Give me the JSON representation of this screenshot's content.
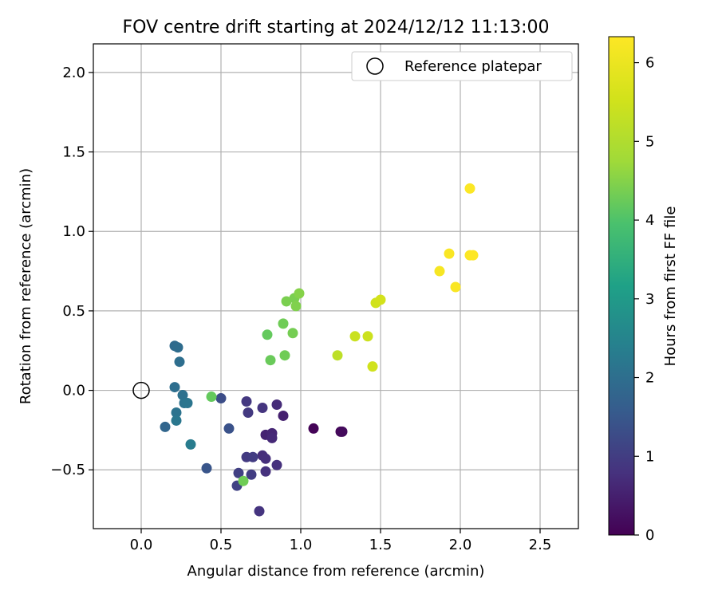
{
  "chart_data": {
    "type": "scatter",
    "title": "FOV centre drift starting at 2024/12/12 11:13:00",
    "xlabel": "Angular distance from reference (arcmin)",
    "ylabel": "Rotation from reference (arcmin)",
    "xlim": [
      -0.3,
      2.74
    ],
    "ylim": [
      -0.87,
      2.18
    ],
    "xticks": [
      0.0,
      0.5,
      1.0,
      1.5,
      2.0,
      2.5
    ],
    "xtick_labels": [
      "0.0",
      "0.5",
      "1.0",
      "1.5",
      "2.0",
      "2.5"
    ],
    "yticks": [
      -0.5,
      0.0,
      0.5,
      1.0,
      1.5,
      2.0
    ],
    "ytick_labels": [
      "−0.5",
      "0.0",
      "0.5",
      "1.0",
      "1.5",
      "2.0"
    ],
    "grid": true,
    "legend": {
      "position": "upper right",
      "label": "Reference platepar"
    },
    "reference_point": {
      "x": 0.0,
      "y": 0.0
    },
    "colorbar": {
      "label": "Hours from first FF file",
      "colormap": "viridis",
      "range": [
        0,
        6.33
      ],
      "ticks": [
        0,
        1,
        2,
        3,
        4,
        5,
        6
      ],
      "tick_labels": [
        "0",
        "1",
        "2",
        "3",
        "4",
        "5",
        "6"
      ]
    },
    "points": [
      {
        "x": 1.08,
        "y": -0.24,
        "c": 0.05
      },
      {
        "x": 1.25,
        "y": -0.26,
        "c": 0.1
      },
      {
        "x": 1.26,
        "y": -0.26,
        "c": 0.15
      },
      {
        "x": 0.89,
        "y": -0.16,
        "c": 0.5
      },
      {
        "x": 0.78,
        "y": -0.28,
        "c": 0.55
      },
      {
        "x": 0.82,
        "y": -0.27,
        "c": 0.6
      },
      {
        "x": 0.82,
        "y": -0.3,
        "c": 0.65
      },
      {
        "x": 0.85,
        "y": -0.09,
        "c": 0.7
      },
      {
        "x": 0.76,
        "y": -0.41,
        "c": 0.72
      },
      {
        "x": 0.78,
        "y": -0.43,
        "c": 0.75
      },
      {
        "x": 0.85,
        "y": -0.47,
        "c": 0.78
      },
      {
        "x": 0.78,
        "y": -0.51,
        "c": 0.8
      },
      {
        "x": 0.74,
        "y": -0.76,
        "c": 0.82
      },
      {
        "x": 0.76,
        "y": -0.11,
        "c": 0.85
      },
      {
        "x": 0.66,
        "y": -0.07,
        "c": 0.9
      },
      {
        "x": 0.67,
        "y": -0.14,
        "c": 0.92
      },
      {
        "x": 0.66,
        "y": -0.42,
        "c": 0.95
      },
      {
        "x": 0.7,
        "y": -0.42,
        "c": 0.98
      },
      {
        "x": 0.69,
        "y": -0.53,
        "c": 1.0
      },
      {
        "x": 0.61,
        "y": -0.52,
        "c": 1.05
      },
      {
        "x": 0.6,
        "y": -0.6,
        "c": 1.1
      },
      {
        "x": 0.5,
        "y": -0.05,
        "c": 1.3
      },
      {
        "x": 0.55,
        "y": -0.24,
        "c": 1.4
      },
      {
        "x": 0.41,
        "y": -0.49,
        "c": 1.45
      },
      {
        "x": 0.15,
        "y": -0.23,
        "c": 1.8
      },
      {
        "x": 0.21,
        "y": 0.28,
        "c": 1.9
      },
      {
        "x": 0.23,
        "y": 0.27,
        "c": 1.95
      },
      {
        "x": 0.24,
        "y": 0.18,
        "c": 2.0
      },
      {
        "x": 0.21,
        "y": 0.02,
        "c": 2.0
      },
      {
        "x": 0.26,
        "y": -0.03,
        "c": 2.05
      },
      {
        "x": 0.27,
        "y": -0.08,
        "c": 2.1
      },
      {
        "x": 0.29,
        "y": -0.08,
        "c": 2.15
      },
      {
        "x": 0.22,
        "y": -0.14,
        "c": 2.1
      },
      {
        "x": 0.22,
        "y": -0.19,
        "c": 2.2
      },
      {
        "x": 0.31,
        "y": -0.34,
        "c": 2.3
      },
      {
        "x": 0.44,
        "y": -0.04,
        "c": 4.2
      },
      {
        "x": 0.64,
        "y": -0.57,
        "c": 4.3
      },
      {
        "x": 0.79,
        "y": 0.35,
        "c": 4.2
      },
      {
        "x": 0.81,
        "y": 0.19,
        "c": 4.25
      },
      {
        "x": 0.9,
        "y": 0.22,
        "c": 4.3
      },
      {
        "x": 0.89,
        "y": 0.42,
        "c": 4.3
      },
      {
        "x": 0.95,
        "y": 0.36,
        "c": 4.35
      },
      {
        "x": 0.91,
        "y": 0.56,
        "c": 4.4
      },
      {
        "x": 0.96,
        "y": 0.58,
        "c": 4.4
      },
      {
        "x": 0.97,
        "y": 0.53,
        "c": 4.45
      },
      {
        "x": 0.99,
        "y": 0.61,
        "c": 4.5
      },
      {
        "x": 1.23,
        "y": 0.22,
        "c": 5.2
      },
      {
        "x": 1.34,
        "y": 0.34,
        "c": 5.4
      },
      {
        "x": 1.42,
        "y": 0.34,
        "c": 5.45
      },
      {
        "x": 1.45,
        "y": 0.15,
        "c": 5.5
      },
      {
        "x": 1.47,
        "y": 0.55,
        "c": 5.5
      },
      {
        "x": 1.5,
        "y": 0.57,
        "c": 5.55
      },
      {
        "x": 1.87,
        "y": 0.75,
        "c": 6.2
      },
      {
        "x": 1.93,
        "y": 0.86,
        "c": 6.25
      },
      {
        "x": 1.97,
        "y": 0.65,
        "c": 6.25
      },
      {
        "x": 2.06,
        "y": 1.27,
        "c": 6.3
      },
      {
        "x": 2.06,
        "y": 0.85,
        "c": 6.3
      },
      {
        "x": 2.08,
        "y": 0.85,
        "c": 6.33
      }
    ]
  }
}
